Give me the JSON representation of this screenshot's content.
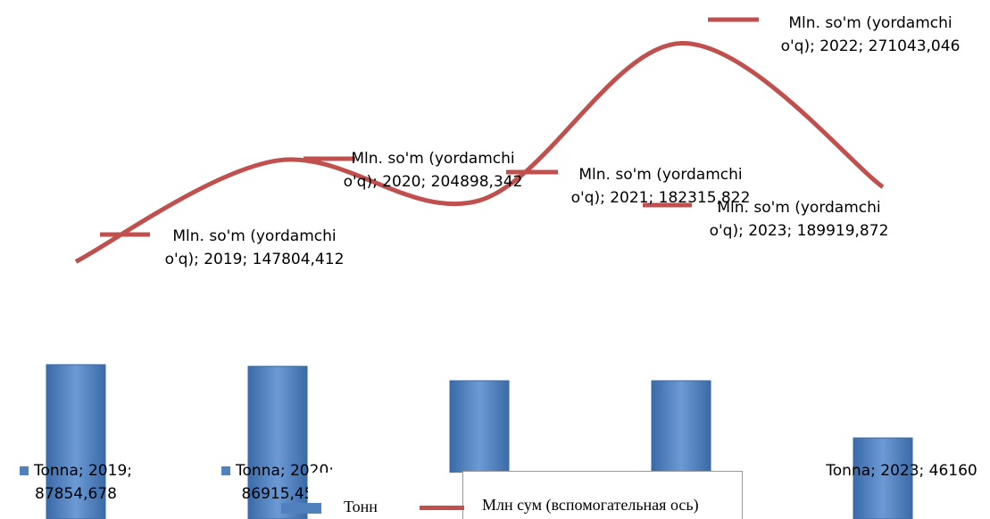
{
  "chart_data": {
    "type": "bar_line",
    "categories": [
      "2019",
      "2020",
      "2021",
      "2022",
      "2023"
    ],
    "series": [
      {
        "name": "Тонн",
        "type": "bar",
        "color": "#4f81bd",
        "values": [
          87854.678,
          86915.45,
          78700,
          78700,
          46160
        ],
        "value_labels": [
          "Tonna; 2019; 87854,678",
          "Tonna; 2020; 86915,45",
          null,
          null,
          "Tonna; 2023; 46160"
        ]
      },
      {
        "name": "Млн сум (вспомогательная ось)",
        "type": "line",
        "axis": "y2",
        "color": "#c0504d",
        "values": [
          147804.412,
          204898.342,
          182315.822,
          271043.046,
          189919.872
        ],
        "value_labels": [
          "Mln. so'm (yordamchi o'q); 2019; 147804,412",
          "Mln. so'm (yordamchi o'q); 2020; 204898,342",
          "Mln. so'm (yordamchi o'q); 2021; 182315,822",
          "Mln. so'm (yordamchi o'q); 2022; 271043,046",
          "Mln. so'm (yordamchi o'q); 2023; 189919,872"
        ]
      }
    ],
    "ylim": [
      0,
      100000
    ],
    "y2lim": [
      0,
      300000
    ],
    "legend": "bottom"
  }
}
